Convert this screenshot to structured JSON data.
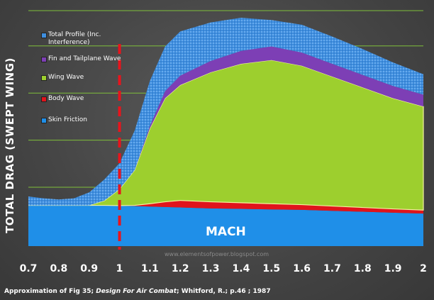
{
  "chart_data": {
    "type": "area",
    "stacked": true,
    "xlabel": "MACH",
    "ylabel": "TOTAL DRAG (SWEPT WING)",
    "xlim": [
      0.7,
      2.0
    ],
    "ylim": [
      0,
      1.0
    ],
    "x_ticks": [
      "0.7",
      "0.8",
      "0.9",
      "1",
      "1.1",
      "1.2",
      "1.3",
      "1.4",
      "1.5",
      "1.6",
      "1.7",
      "1.8",
      "1.9",
      "2"
    ],
    "x": [
      0.7,
      0.75,
      0.8,
      0.85,
      0.9,
      0.95,
      1.0,
      1.05,
      1.1,
      1.15,
      1.2,
      1.3,
      1.4,
      1.5,
      1.6,
      1.7,
      1.8,
      1.9,
      2.0
    ],
    "series": [
      {
        "name": "Skin Friction",
        "color": "#1f8fe8",
        "values": [
          0.173,
          0.173,
          0.173,
          0.173,
          0.173,
          0.173,
          0.172,
          0.17,
          0.168,
          0.166,
          0.164,
          0.16,
          0.158,
          0.156,
          0.154,
          0.15,
          0.146,
          0.142,
          0.138
        ]
      },
      {
        "name": "Body Wave",
        "color": "#e0141c",
        "values": [
          0,
          0,
          0,
          0,
          0,
          0,
          0,
          0.003,
          0.012,
          0.022,
          0.03,
          0.028,
          0.026,
          0.024,
          0.022,
          0.02,
          0.018,
          0.016,
          0.015
        ]
      },
      {
        "name": "Wing Wave",
        "color": "#9dcf2e",
        "values": [
          0,
          0,
          0,
          0,
          0,
          0.02,
          0.07,
          0.15,
          0.32,
          0.44,
          0.49,
          0.55,
          0.59,
          0.61,
          0.59,
          0.55,
          0.51,
          0.47,
          0.44
        ]
      },
      {
        "name": "Fin and Tailplane Wave",
        "color": "#7d3fb5",
        "values": [
          0,
          0,
          0,
          0,
          0,
          0,
          0,
          0,
          0.01,
          0.03,
          0.04,
          0.048,
          0.055,
          0.058,
          0.056,
          0.054,
          0.053,
          0.052,
          0.05
        ]
      },
      {
        "name": "Total Profile (Inc. Interference)",
        "color": "#3f8fe0",
        "values": [
          0.038,
          0.03,
          0.025,
          0.03,
          0.055,
          0.09,
          0.11,
          0.168,
          0.192,
          0.19,
          0.188,
          0.164,
          0.141,
          0.112,
          0.118,
          0.116,
          0.11,
          0.1,
          0.087
        ]
      }
    ],
    "legend": [
      {
        "label": "Total Profile (Inc. Interference)",
        "color": "#3f8fe0"
      },
      {
        "label": "Fin and Tailplane Wave",
        "color": "#7d3fb5"
      },
      {
        "label": "Wing Wave",
        "color": "#9dcf2e"
      },
      {
        "label": "Body Wave",
        "color": "#e0141c"
      },
      {
        "label": "Skin Friction",
        "color": "#1f8fe8"
      }
    ],
    "gridlines_y": [
      0.25,
      0.45,
      0.65,
      0.85,
      1.0
    ],
    "reference_line": {
      "x": 1.0,
      "color": "#e8141c",
      "style": "dashed"
    }
  },
  "watermark": "www.elementsofpower.blogspot.com",
  "caption": {
    "prefix": "Approximation of Fig 35;",
    "source": "Design For Air Combat",
    "suffix": "; Whitford, R.; p.46 ; 1987"
  },
  "colors": {
    "background": "#4a4a4a",
    "grid": "#7fbf3a",
    "axis_text": "#ffffff"
  }
}
